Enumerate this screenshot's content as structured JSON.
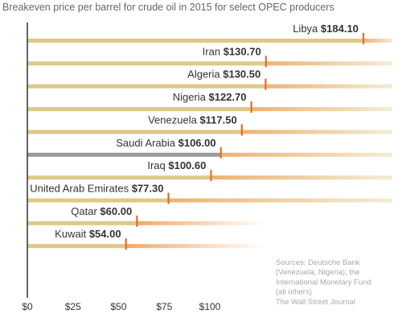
{
  "chart_data": {
    "type": "bar",
    "title": "Breakeven price per barrel for crude oil in 2015 for select OPEC producers",
    "categories": [
      "Libya",
      "Iran",
      "Algeria",
      "Nigeria",
      "Venezuela",
      "Saudi Arabia",
      "Iraq",
      "United Arab Emirates",
      "Qatar",
      "Kuwait"
    ],
    "values": [
      184.1,
      130.7,
      130.5,
      122.7,
      117.5,
      106.0,
      100.6,
      77.3,
      60.0,
      54.0
    ],
    "value_labels": [
      "$184.10",
      "$130.70",
      "$130.50",
      "$122.70",
      "$117.50",
      "$106.00",
      "$100.60",
      "$77.30",
      "$60.00",
      "$54.00"
    ],
    "highlight": "Saudi Arabia",
    "x_ticks": [
      0,
      25,
      50,
      75,
      100
    ],
    "x_tick_labels": [
      "$0",
      "$25",
      "$50",
      "$75",
      "$100"
    ],
    "xlim": [
      0,
      200
    ],
    "grid": false,
    "colors": {
      "bar": "#dfc888",
      "bar_highlight": "#9a9a9a",
      "fade": "#f4a86a",
      "marker": "#e07020",
      "axis": "#333333"
    },
    "source_lines": [
      "Sources: Deutsche Bank",
      "(Venezuela, Nigeria); the",
      "International Monetary Fund",
      "(all others)",
      "The Wall Street Journal"
    ]
  }
}
